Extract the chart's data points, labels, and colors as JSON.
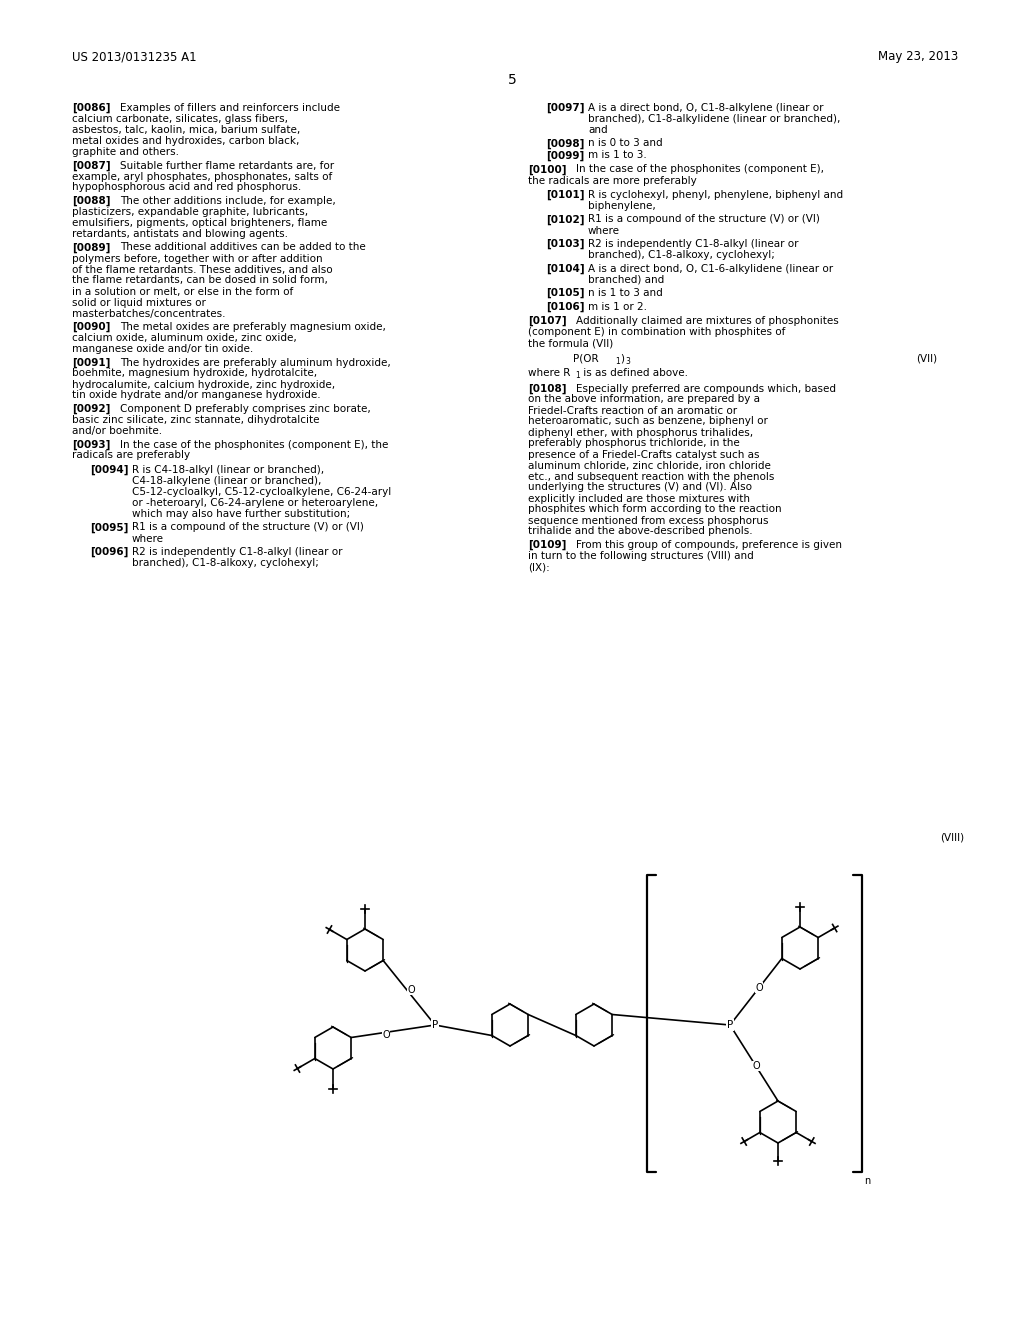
{
  "background_color": "#ffffff",
  "header_left": "US 2013/0131235 A1",
  "header_right": "May 23, 2013",
  "page_number": "5",
  "left_column_paragraphs": [
    {
      "tag": "[0086]",
      "text": "Examples of fillers and reinforcers include calcium carbonate, silicates, glass fibers, asbestos, talc, kaolin, mica, barium sulfate, metal oxides and hydroxides, carbon black, graphite and others."
    },
    {
      "tag": "[0087]",
      "text": "Suitable further flame retardants are, for example, aryl phosphates, phosphonates, salts of hypophosphorous acid and red phosphorus."
    },
    {
      "tag": "[0088]",
      "text": "The other additions include, for example, plasticizers, expandable graphite, lubricants, emulsifiers, pigments, optical brighteners, flame retardants, antistats and blowing agents."
    },
    {
      "tag": "[0089]",
      "text": "These additional additives can be added to the polymers before, together with or after addition of the flame retardants. These additives, and also the flame retardants, can be dosed in solid form, in a solution or melt, or else in the form of solid or liquid mixtures or masterbatches/concentrates."
    },
    {
      "tag": "[0090]",
      "text": "The metal oxides are preferably magnesium oxide, calcium oxide, aluminum oxide, zinc oxide, manganese oxide and/or tin oxide."
    },
    {
      "tag": "[0091]",
      "text": "The hydroxides are preferably aluminum hydroxide, boehmite, magnesium hydroxide, hydrotalcite, hydrocalumite, calcium hydroxide, zinc hydroxide, tin oxide hydrate and/or manganese hydroxide."
    },
    {
      "tag": "[0092]",
      "text": "Component D preferably comprises zinc borate, basic zinc silicate, zinc stannate, dihydrotalcite and/or boehmite."
    },
    {
      "tag": "[0093]",
      "text": "In the case of the phosphonites (component E), the radicals are preferably"
    }
  ],
  "left_bullets": [
    {
      "tag": "[0094]",
      "text": "R is C4-18-alkyl (linear or branched), C4-18-alkylene (linear or branched), C5-12-cycloalkyl, C5-12-cycloalkylene, C6-24-aryl or -heteroaryl, C6-24-arylene or heteroarylene, which may also have further substitution;"
    },
    {
      "tag": "[0095]",
      "text": "R1 is a compound of the structure (V) or (VI) where"
    },
    {
      "tag": "[0096]",
      "text": "R2 is independently C1-8-alkyl (linear or branched), C1-8-alkoxy, cyclohexyl;"
    }
  ],
  "right_column_paragraphs": [
    {
      "tag": "[0097]",
      "text": "A is a direct bond, O, C1-8-alkylene (linear or branched), C1-8-alkylidene (linear or branched), and"
    },
    {
      "tag": "[0098]",
      "text": "n is 0 to 3 and"
    },
    {
      "tag": "[0099]",
      "text": "m is 1 to 3."
    },
    {
      "tag": "[0100]",
      "text": "In the case of the phosphonites (component E), the radicals are more preferably"
    }
  ],
  "right_bullets": [
    {
      "tag": "[0101]",
      "text": "R is cyclohexyl, phenyl, phenylene, biphenyl and biphenylene,"
    },
    {
      "tag": "[0102]",
      "text": "R1 is a compound of the structure (V) or (VI) where"
    },
    {
      "tag": "[0103]",
      "text": "R2 is independently C1-8-alkyl (linear or branched), C1-8-alkoxy, cyclohexyl;"
    },
    {
      "tag": "[0104]",
      "text": "A is a direct bond, O, C1-6-alkylidene (linear or branched) and"
    },
    {
      "tag": "[0105]",
      "text": "n is 1 to 3 and"
    },
    {
      "tag": "[0106]",
      "text": "m is 1 or 2."
    }
  ],
  "right_paragraphs2": [
    {
      "tag": "[0107]",
      "text": "Additionally claimed are mixtures of phosphonites (component E) in combination with phosphites of the formula (VII)"
    },
    {
      "tag": "[0108]",
      "text": "Especially preferred are compounds which, based on the above information, are prepared by a Friedel-Crafts reaction of an aromatic or heteroaromatic, such as benzene, biphenyl or diphenyl ether, with phosphorus trihalides, preferably phosphorus trichloride, in the presence of a Friedel-Crafts catalyst such as aluminum chloride, zinc chloride, iron chloride etc., and subsequent reaction with the phenols underlying the structures (V) and (VI). Also explicitly included are those mixtures with phosphites which form according to the reaction sequence mentioned from excess phosphorus trihalide and the above-described phenols."
    },
    {
      "tag": "[0109]",
      "text": "From this group of compounds, preference is given in turn to the following structures (VIII) and (IX):"
    }
  ],
  "structure_label": "(VIII)"
}
